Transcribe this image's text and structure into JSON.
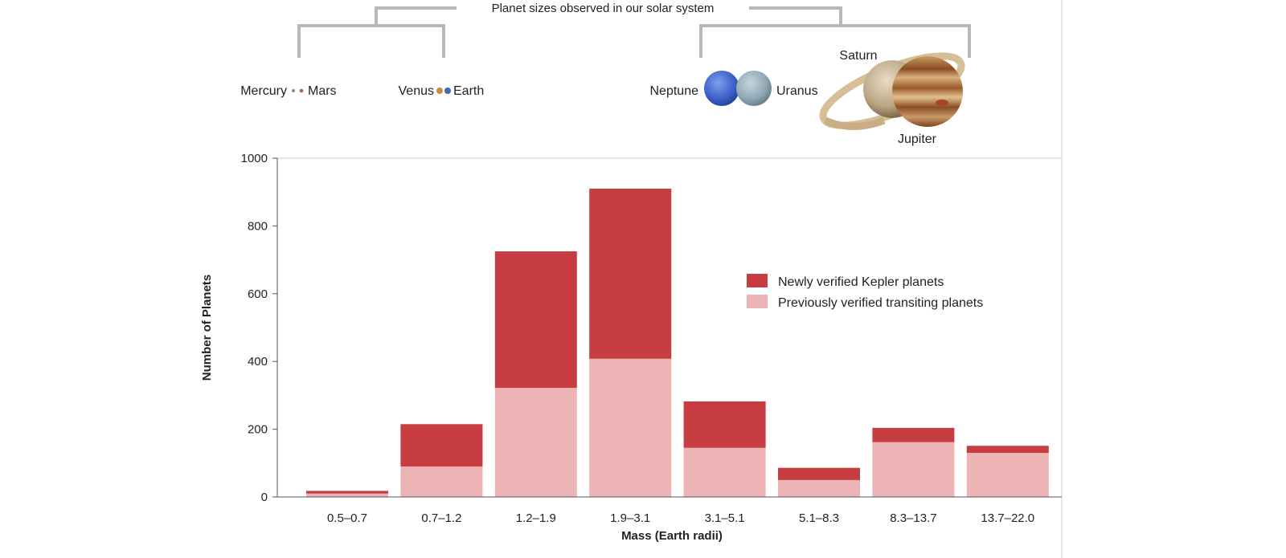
{
  "header": {
    "title": "Planet sizes observed in our solar system",
    "planets": {
      "mercury": "Mercury",
      "mars": "Mars",
      "venus": "Venus",
      "earth": "Earth",
      "neptune": "Neptune",
      "uranus": "Uranus",
      "saturn": "Saturn",
      "jupiter": "Jupiter"
    }
  },
  "colors": {
    "newly_verified": "#c73d41",
    "previously_verified": "#ecb4b5",
    "bracket": "#b8b8b8",
    "axis": "#555555",
    "gridline": "#cccccc"
  },
  "chart_data": {
    "type": "bar",
    "stacked": true,
    "xlabel": "Mass (Earth radii)",
    "ylabel": "Number of Planets",
    "ylim": [
      0,
      1000
    ],
    "yticks": [
      0,
      200,
      400,
      600,
      800,
      1000
    ],
    "categories": [
      "0.5–0.7",
      "0.7–1.2",
      "1.2–1.9",
      "1.9–3.1",
      "3.1–5.1",
      "5.1–8.3",
      "8.3–13.7",
      "13.7–22.0"
    ],
    "series": [
      {
        "name": "Previously verified transiting planets",
        "values": [
          10,
          90,
          322,
          408,
          145,
          50,
          162,
          130
        ]
      },
      {
        "name": "Newly verified Kepler planets",
        "values": [
          8,
          125,
          403,
          502,
          137,
          36,
          42,
          21
        ]
      }
    ],
    "legend_position": "center-right",
    "legend_order": [
      "Newly verified Kepler planets",
      "Previously verified transiting planets"
    ]
  }
}
